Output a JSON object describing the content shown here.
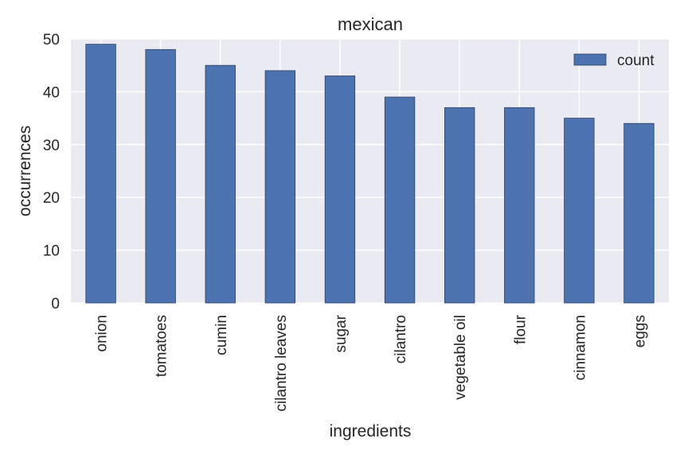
{
  "chart_data": {
    "type": "bar",
    "title": "mexican",
    "xlabel": "ingredients",
    "ylabel": "occurrences",
    "categories": [
      "onion",
      "tomatoes",
      "cumin",
      "cilantro leaves",
      "sugar",
      "cilantro",
      "vegetable oil",
      "flour",
      "cinnamon",
      "eggs"
    ],
    "series": [
      {
        "name": "count",
        "values": [
          49,
          48,
          45,
          44,
          43,
          39,
          37,
          37,
          35,
          34
        ]
      }
    ],
    "ylim": [
      0,
      50
    ],
    "yticks": [
      0,
      10,
      20,
      30,
      40,
      50
    ],
    "grid": true,
    "legend_position": "top-right",
    "colors": {
      "bar": "#4c72b0",
      "bar_edge": "#2f3f5f",
      "plot_background": "#eaeaf2",
      "grid": "#ffffff",
      "text": "#262626"
    }
  }
}
